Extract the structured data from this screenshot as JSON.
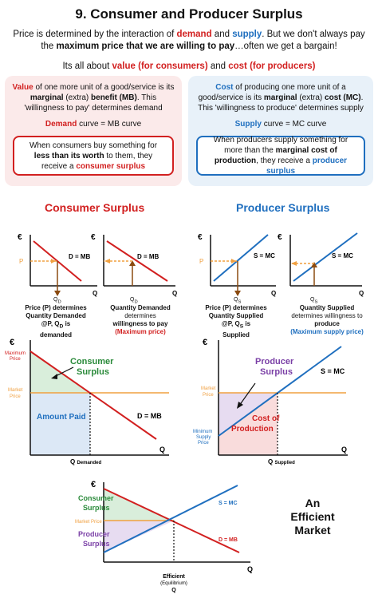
{
  "title": "9. Consumer and Producer Surplus",
  "intro": {
    "p1": "Price is determined by the interaction of ",
    "demand": "demand",
    "p2": " and ",
    "supply": "supply",
    "p3": ". But we don't always pay the ",
    "max_price": "maximum price that we are willing to pay",
    "p4": "…often we get a bargain!"
  },
  "subtitle": {
    "p1": "Its all about ",
    "value": "value",
    "for_consumers": "(for consumers)",
    "and": " and ",
    "cost": "cost",
    "for_producers": "(for producers)"
  },
  "consumer_panel": {
    "value_word": "Value",
    "text1": " of one more unit of a good/service is its ",
    "marginal_benefit": "marginal",
    "text2": " (extra) ",
    "benefit": "benefit (MB)",
    "text3": ". This 'willingness to pay' determines demand",
    "curve_label": "Demand",
    "curve_rest": " curve = MB curve",
    "box_p1": "When consumers buy something for ",
    "box_bold": "less than its worth",
    "box_p2": " to them, they receive a ",
    "box_term": "consumer surplus"
  },
  "producer_panel": {
    "cost_word": "Cost",
    "text1": " of producing one more unit of a good/service is its ",
    "marginal_cost": "marginal",
    "text2": " (extra) ",
    "cost": "cost (MC)",
    "text3": ". This 'willingness to produce' determines supply",
    "curve_label": "Supply",
    "curve_rest": " curve = MC curve",
    "box_p1": "When producers supply something for more than the ",
    "box_bold": "marginal cost of production",
    "box_p2": ", they receive a ",
    "box_term": "producer surplus"
  },
  "sections": {
    "consumer": "Consumer Surplus",
    "producer": "Producer Surplus"
  },
  "small_graphs": {
    "euro": "€",
    "p": "P",
    "q": "Q",
    "qd": "Q",
    "qd_sub": "D",
    "qs": "Q",
    "qs_sub": "S",
    "d_mb": "D = MB",
    "s_mc": "S = MC",
    "cap1_l1": "Price (P) determines",
    "cap1_l2": "Quantity Demanded",
    "cap1_l3": "@P, Q",
    "cap1_l3b": "D",
    "cap1_l3c": " is",
    "cap1_l4": "demanded",
    "cap2_l1": "Quantity Demanded",
    "cap2_l2": "determines",
    "cap2_l3": "willingness to pay",
    "cap2_l4": "(Maximum price)",
    "cap3_l1": "Price (P) determines",
    "cap3_l2": "Quantity Supplied",
    "cap3_l3": "@P, Q",
    "cap3_l3b": "S",
    "cap3_l3c": " is",
    "cap3_l4": "Supplied",
    "cap4_l1": "Quantity Supplied",
    "cap4_l2": "determines willingness to",
    "cap4_l3": "produce",
    "cap4_l4": "(Maximum supply price)"
  },
  "consumer_graph": {
    "euro": "€",
    "max_price_l1": "Maximum",
    "max_price_l2": "Price",
    "market_price_l1": "Market",
    "market_price_l2": "Price",
    "surplus_l1": "Consumer",
    "surplus_l2": "Surplus",
    "amount_paid": "Amount Paid",
    "d_mb": "D = MB",
    "q": "Q",
    "q_axis": "Q",
    "demanded": "Demanded"
  },
  "producer_graph": {
    "euro": "€",
    "market_price_l1": "Market",
    "market_price_l2": "Price",
    "min_l1": "Minimum",
    "min_l2": "Supply",
    "min_l3": "Price",
    "surplus_l1": "Producer",
    "surplus_l2": "Surplus",
    "s_mc": "S = MC",
    "cost_l1": "Cost of",
    "cost_l2": "Production",
    "q": "Q",
    "q_axis": "Q",
    "supplied": "Supplied"
  },
  "market_graph": {
    "euro": "€",
    "consumer_l1": "Consumer",
    "consumer_l2": "Surplus",
    "market_price": "Market Price",
    "producer_l1": "Producer",
    "producer_l2": "Surplus",
    "s_mc": "S = MC",
    "d_mb": "D = MB",
    "q": "Q",
    "efficient": "Efficient",
    "equilibrium": "(Equilibrium)",
    "q_bottom": "Q",
    "an_efficient_l1": "An",
    "an_efficient_l2": "Efficient",
    "an_efficient_l3": "Market"
  },
  "colors": {
    "red": "#d22020",
    "blue": "#1f6fbf",
    "orange": "#f0a040",
    "purple": "#7a3fa6",
    "green_fill": "#d9eedb",
    "blue_fill": "#dce8f6",
    "purple_fill": "#e7dcf1",
    "pink_fill": "#f9dcdc"
  }
}
